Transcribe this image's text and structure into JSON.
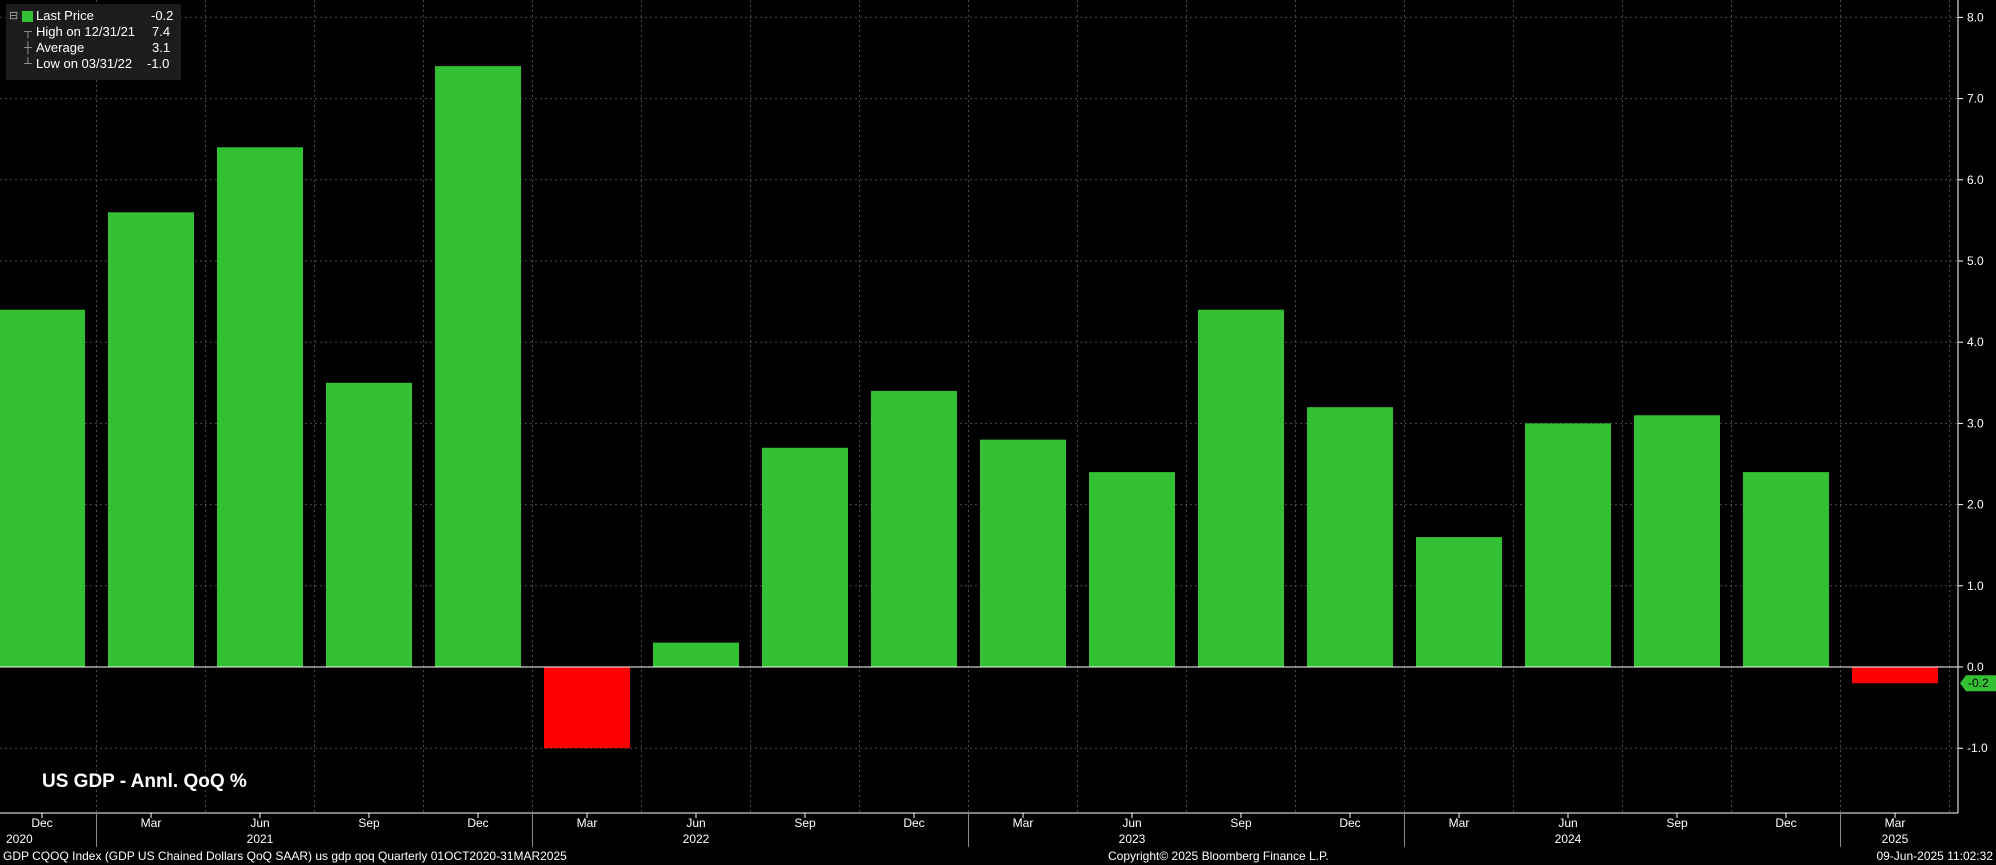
{
  "legend": {
    "last_price_label": "Last Price",
    "last_price_value": "-0.2",
    "high_label": "High on 12/31/21",
    "high_value": "7.4",
    "average_label": "Average",
    "average_value": "3.1",
    "low_label": "Low on 03/31/22",
    "low_value": "-1.0"
  },
  "chart_title": "US GDP - Annl. QoQ %",
  "footer": {
    "left": "GDP CQOQ Index (GDP US Chained Dollars QoQ SAAR) us gdp qoq  Quarterly 01OCT2020-31MAR2025",
    "center": "Copyright© 2025 Bloomberg Finance L.P.",
    "right": "09-Jun-2025 11:02:32"
  },
  "colors": {
    "positive": "#33c133",
    "negative": "#ff0000",
    "background": "#000000",
    "grid": "#4a4a4a",
    "last_value_tag": "#33c133"
  },
  "chart_data": {
    "type": "bar",
    "categories": [
      "Dec",
      "Mar",
      "Jun",
      "Sep",
      "Dec",
      "Mar",
      "Jun",
      "Sep",
      "Dec",
      "Mar",
      "Jun",
      "Sep",
      "Dec",
      "Mar",
      "Jun",
      "Sep",
      "Dec",
      "Mar"
    ],
    "x_years": [
      "2020",
      "2021",
      "2021",
      "2021",
      "2021",
      "2022",
      "2022",
      "2022",
      "2022",
      "2023",
      "2023",
      "2023",
      "2023",
      "2024",
      "2024",
      "2024",
      "2024",
      "2025"
    ],
    "year_labels": [
      {
        "index": 0,
        "label": "2020"
      },
      {
        "index": 2,
        "label": "2021"
      },
      {
        "index": 6,
        "label": "2022"
      },
      {
        "index": 10,
        "label": "2023"
      },
      {
        "index": 14,
        "label": "2024"
      },
      {
        "index": 17,
        "label": "2025"
      }
    ],
    "series": [
      {
        "name": "Last Price",
        "values": [
          4.4,
          5.6,
          6.4,
          3.5,
          7.4,
          -1.0,
          0.3,
          2.7,
          3.4,
          2.8,
          2.4,
          4.4,
          3.2,
          1.6,
          3.0,
          3.1,
          2.4,
          -0.2
        ]
      }
    ],
    "ylim": [
      -1.8,
      8.2
    ],
    "yticks": [
      -1.0,
      0.0,
      1.0,
      2.0,
      3.0,
      4.0,
      5.0,
      6.0,
      7.0,
      8.0
    ],
    "y_axis_side": "right",
    "grid": true,
    "legend_position": "top-left",
    "last_value_label": "-0.2",
    "title": "US GDP - Annl. QoQ %"
  }
}
